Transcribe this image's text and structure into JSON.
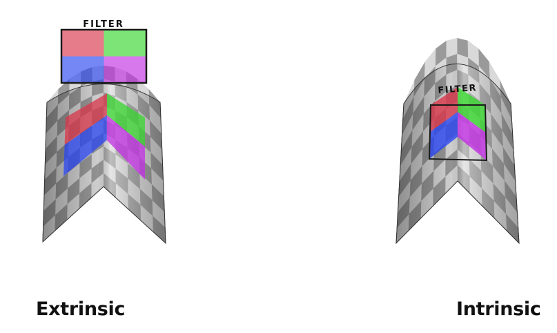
{
  "filter_label": "FILTER",
  "panels": [
    {
      "caption": "Extrinsic",
      "mode": "extrinsic"
    },
    {
      "caption": "Intrinsic",
      "mode": "intrinsic"
    }
  ],
  "filter_quadrants": [
    {
      "name": "top-left",
      "color": "#d9364a"
    },
    {
      "name": "top-right",
      "color": "#37d62e"
    },
    {
      "name": "bottom-left",
      "color": "#2a46f0"
    },
    {
      "name": "bottom-right",
      "color": "#c22fe3"
    }
  ]
}
